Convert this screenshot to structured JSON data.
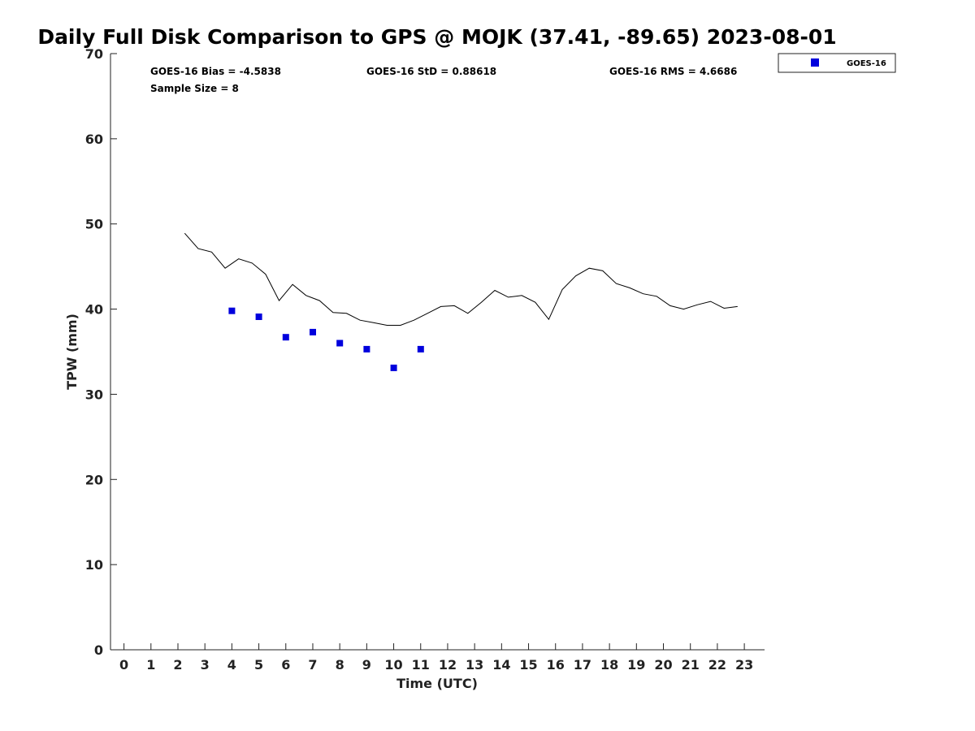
{
  "chart_data": {
    "type": "scatter",
    "title": "Daily Full Disk Comparison to GPS @ MOJK (37.41, -89.65) 2023-08-01",
    "xlabel": "Time (UTC)",
    "ylabel": "TPW (mm)",
    "xlim": [
      -0.5,
      23.75
    ],
    "ylim": [
      0,
      70
    ],
    "x_ticks": [
      0,
      1,
      2,
      3,
      4,
      5,
      6,
      7,
      8,
      9,
      10,
      11,
      12,
      13,
      14,
      15,
      16,
      17,
      18,
      19,
      20,
      21,
      22,
      23
    ],
    "y_ticks": [
      0,
      10,
      20,
      30,
      40,
      50,
      60,
      70
    ],
    "grid": false,
    "legend_position": "outside-top-right",
    "stats": {
      "bias": "GOES-16 Bias = -4.5838",
      "std": "GOES-16 StD = 0.88618",
      "rms": "GOES-16 RMS = 4.6686",
      "sample_size": "Sample Size = 8"
    },
    "series": [
      {
        "name": "GOES-16",
        "kind": "scatter",
        "marker": "square",
        "color": "#0000dd",
        "x": [
          4.0,
          5.0,
          6.0,
          7.0,
          8.0,
          9.0,
          10.0,
          11.0
        ],
        "y": [
          39.8,
          39.1,
          36.7,
          37.3,
          36.0,
          35.3,
          33.1,
          35.3
        ]
      },
      {
        "kind": "line",
        "color": "#000000",
        "x": [
          2.25,
          2.75,
          3.25,
          3.75,
          4.25,
          4.75,
          5.25,
          5.75,
          6.25,
          6.75,
          7.25,
          7.75,
          8.25,
          8.75,
          9.25,
          9.75,
          10.25,
          10.75,
          11.25,
          11.75,
          12.25,
          12.75,
          13.25,
          13.75,
          14.25,
          14.75,
          15.25,
          15.75,
          16.25,
          16.75,
          17.25,
          17.75,
          18.25,
          18.75,
          19.25,
          19.75,
          20.25,
          20.75,
          21.25,
          21.75,
          22.25,
          22.75
        ],
        "y": [
          48.9,
          47.1,
          46.7,
          44.8,
          45.9,
          45.4,
          44.1,
          41.0,
          42.9,
          41.6,
          41.0,
          39.6,
          39.5,
          38.7,
          38.4,
          38.1,
          38.1,
          38.7,
          39.5,
          40.3,
          40.4,
          39.5,
          40.8,
          42.2,
          41.4,
          41.6,
          40.8,
          38.8,
          42.3,
          43.9,
          44.8,
          44.5,
          43.0,
          42.5,
          41.8,
          41.5,
          40.4,
          40.0,
          40.5,
          40.9,
          40.1,
          40.3
        ]
      }
    ]
  }
}
